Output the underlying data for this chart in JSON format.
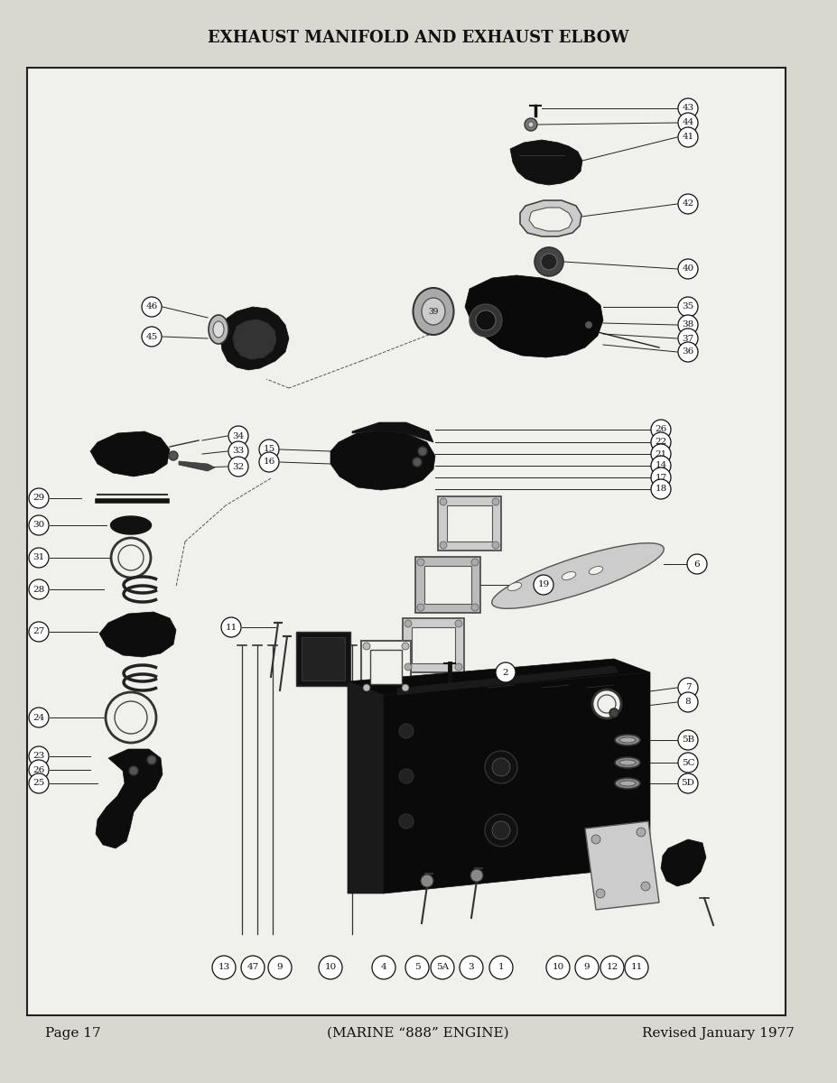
{
  "title": "EXHAUST MANIFOLD AND EXHAUST ELBOW",
  "page_left": "Page 17",
  "page_center": "(MARINE “888” ENGINE)",
  "page_right": "Revised January 1977",
  "bg_color": "#d8d8d0",
  "box_bg": "#f0f0ec",
  "title_fontsize": 13,
  "footer_fontsize": 11
}
